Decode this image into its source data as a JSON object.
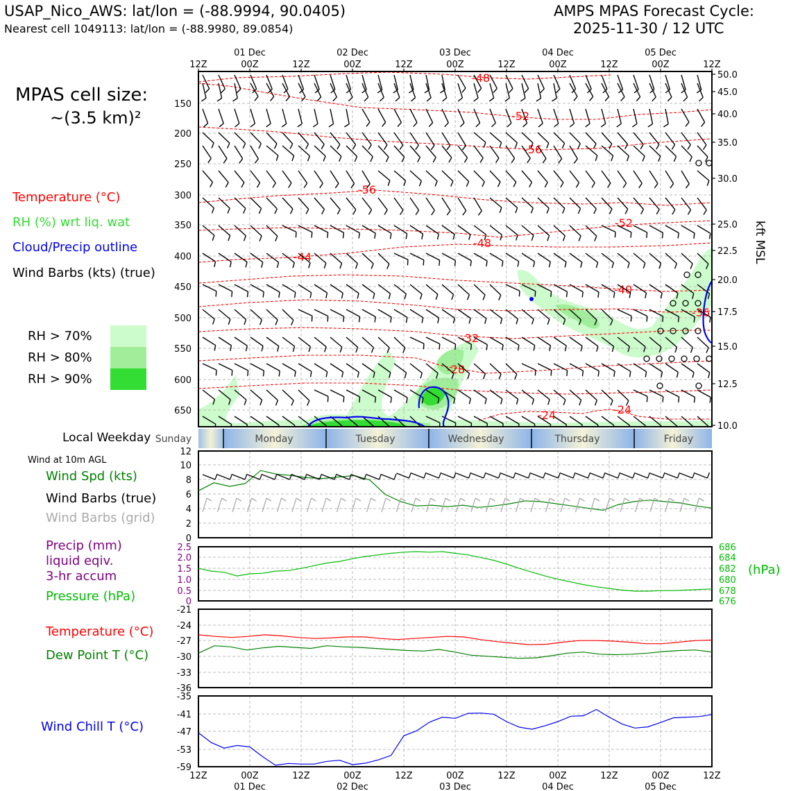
{
  "header": {
    "station": "USAP_Nico_AWS: lat/lon = (-88.9994, 90.0405)",
    "nearest": "Nearest cell 1049113: lat/lon = (-88.9980, 89.0854)",
    "cycle_line1": "AMPS MPAS Forecast Cycle:",
    "cycle_line2": "2025-11-30 / 12 UTC"
  },
  "cell_size": {
    "line1": "MPAS cell size:",
    "line2": "~(3.5 km)²"
  },
  "legend_top": {
    "temperature": "Temperature (°C)",
    "rh": "RH (%) wrt liq. wat",
    "cloud": "Cloud/Precip outline",
    "wind": "Wind Barbs (kts) (true)",
    "rh70": "RH > 70%",
    "rh80": "RH > 80%",
    "rh90": "RH > 90%"
  },
  "colors": {
    "temperature": "#ff0000",
    "rh": "#33dd33",
    "cloud": "#0000ee",
    "wind": "#000000",
    "rh70": "#ccfccc",
    "rh80": "#a0ee9a",
    "rh90": "#33dd33",
    "precip": "#800080",
    "pressure": "#00bb00",
    "dewpoint": "#008000",
    "windchill": "#0000ee",
    "windgrid": "#aaaaaa"
  },
  "time_axis": {
    "hour_labels": [
      "12Z",
      "00Z",
      "12Z",
      "00Z",
      "12Z",
      "00Z",
      "12Z",
      "00Z",
      "12Z",
      "00Z",
      "12Z"
    ],
    "date_labels": [
      "01 Dec",
      "02 Dec",
      "03 Dec",
      "04 Dec",
      "05 Dec"
    ]
  },
  "local_weekday": {
    "label": "Local Weekday",
    "days": [
      "Sunday",
      "Monday",
      "Tuesday",
      "Wednesday",
      "Thursday",
      "Friday"
    ]
  },
  "legend_lower": {
    "wind_at": "Wind at 10m AGL",
    "wind_spd": "Wind Spd (kts)",
    "barbs_true": "Wind Barbs (true)",
    "barbs_grid": "Wind Barbs (grid)",
    "precip1": "Precip (mm)",
    "precip2": "liquid eqiv.",
    "precip3": "3-hr accum",
    "pressure": "Pressure (hPa)",
    "temperature": "Temperature (°C)",
    "dewpoint": "Dew Point T (°C)",
    "windchill": "Wind Chill T (°C)"
  },
  "chart_data": [
    {
      "type": "line",
      "name": "vertical cross-section",
      "y_left_ticks": [
        "150",
        "200",
        "250",
        "300",
        "350",
        "400",
        "450",
        "500",
        "550",
        "600",
        "650"
      ],
      "y_right_ticks": [
        "50.0",
        "45.0",
        "40.0",
        "35.0",
        "30.0",
        "25.0",
        "22.5",
        "20.0",
        "17.5",
        "15.0",
        "12.5",
        "10.0"
      ],
      "y_right_label": "kft MSL",
      "temperature_contour_labels": [
        "-48",
        "-52",
        "-56",
        "-56",
        "-52",
        "-48",
        "-44",
        "-40",
        "-36",
        "-32",
        "-28",
        "-24",
        "-24"
      ]
    },
    {
      "type": "line",
      "name": "wind 10m",
      "y_ticks": [
        "12",
        "10",
        "8",
        "6",
        "4",
        "2",
        "0"
      ],
      "ylim": [
        0,
        12
      ],
      "series": [
        {
          "name": "Wind Spd (kts)",
          "values": [
            6.5,
            7.6,
            7.1,
            7.5,
            9.3,
            8.8,
            8.6,
            8.3,
            8.2,
            8.4,
            8.6,
            8.0,
            6.0,
            5.0,
            4.4,
            4.5,
            4.3,
            4.5,
            4.2,
            4.4,
            4.7,
            5.1,
            5.0,
            4.7,
            4.4,
            4.1,
            3.8,
            4.6,
            5.0,
            5.2,
            5.0,
            4.8,
            4.4,
            4.1
          ]
        }
      ]
    },
    {
      "type": "line",
      "name": "precip and pressure",
      "y_left_ticks": [
        "2.5",
        "2.0",
        "1.5",
        "1.0",
        "0.5",
        "0"
      ],
      "y_right_ticks": [
        "686",
        "684",
        "682",
        "680",
        "678",
        "676"
      ],
      "y_right_label": "(hPa)",
      "series": [
        {
          "name": "Pressure (hPa)",
          "values": [
            682.0,
            681.5,
            681.3,
            680.6,
            681.0,
            681.1,
            681.5,
            681.6,
            682.0,
            682.5,
            683.0,
            683.3,
            683.8,
            684.2,
            684.5,
            684.8,
            685.0,
            685.1,
            685.0,
            685.1,
            684.8,
            684.5,
            684.0,
            683.5,
            682.8,
            682.0,
            681.3,
            680.6,
            680.0,
            679.5,
            679.0,
            678.6,
            678.3,
            678.0,
            677.8,
            677.8,
            677.9,
            677.9,
            678.0,
            678.1,
            678.2
          ]
        }
      ]
    },
    {
      "type": "line",
      "name": "temperature and dew point",
      "y_ticks": [
        "-21",
        "-24",
        "-27",
        "-30",
        "-33",
        "-36"
      ],
      "ylim": [
        -36,
        -21
      ],
      "series": [
        {
          "name": "Temperature (°C)",
          "values": [
            -25.9,
            -26.2,
            -26.4,
            -26.2,
            -25.9,
            -26.1,
            -26.4,
            -26.6,
            -26.5,
            -26.3,
            -26.3,
            -26.6,
            -26.8,
            -26.6,
            -26.4,
            -26.2,
            -26.3,
            -26.8,
            -27.2,
            -27.5,
            -27.8,
            -27.7,
            -27.3,
            -27.0,
            -27.0,
            -27.1,
            -27.3,
            -27.6,
            -27.6,
            -27.3,
            -27.0,
            -26.9
          ]
        },
        {
          "name": "Dew Point T (°C)",
          "values": [
            -29.4,
            -28.0,
            -28.2,
            -28.8,
            -28.4,
            -28.1,
            -28.3,
            -28.5,
            -28.0,
            -28.2,
            -28.3,
            -28.5,
            -28.7,
            -28.9,
            -29.0,
            -28.7,
            -29.2,
            -29.8,
            -30.0,
            -30.2,
            -30.4,
            -30.3,
            -29.9,
            -29.4,
            -29.2,
            -29.6,
            -29.7,
            -29.6,
            -29.4,
            -29.1,
            -28.9,
            -28.8,
            -29.2
          ]
        }
      ]
    },
    {
      "type": "line",
      "name": "wind chill",
      "y_ticks": [
        "-35",
        "-41",
        "-47",
        "-53",
        "-59"
      ],
      "ylim": [
        -59,
        -35
      ],
      "series": [
        {
          "name": "Wind Chill T (°C)",
          "values": [
            -47.5,
            -50.8,
            -52.7,
            -51.8,
            -52.3,
            -55.6,
            -58.5,
            -57.9,
            -58.1,
            -58.1,
            -57.2,
            -56.8,
            -58.3,
            -57.8,
            -56.7,
            -55.2,
            -48.5,
            -46.8,
            -43.9,
            -42.2,
            -42.6,
            -40.9,
            -40.8,
            -41.2,
            -43.7,
            -45.6,
            -46.3,
            -45.1,
            -43.7,
            -41.9,
            -41.7,
            -39.6,
            -42.2,
            -44.5,
            -45.9,
            -45.5,
            -44.0,
            -42.4,
            -42.2,
            -42.0,
            -41.3
          ]
        }
      ]
    }
  ]
}
